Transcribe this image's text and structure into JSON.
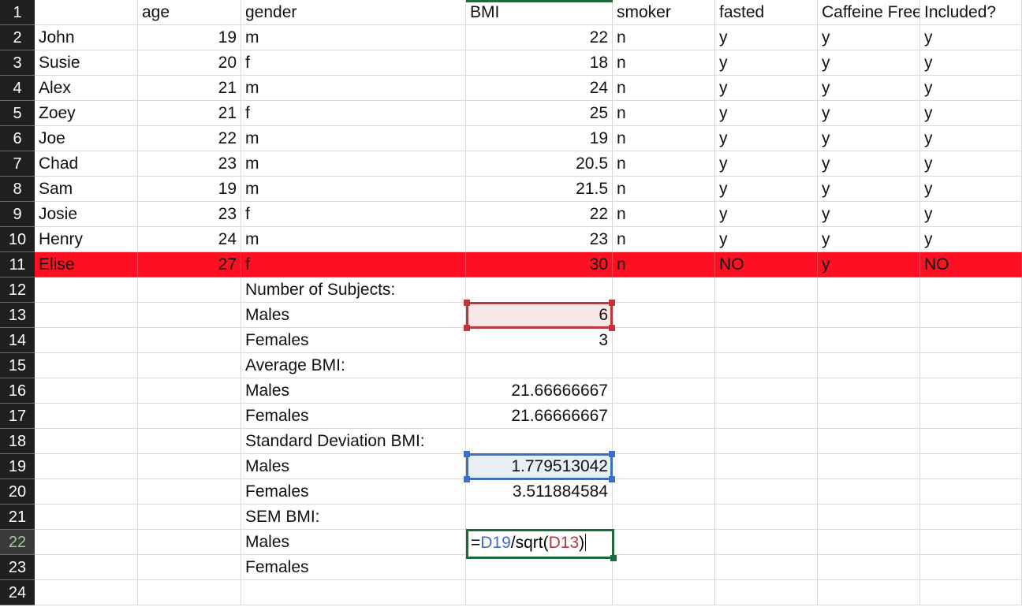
{
  "header_row": [
    "",
    "age",
    "gender",
    "BMI",
    "smoker",
    "fasted",
    "Caffeine Free",
    "Included?"
  ],
  "row_numbers": [
    "1",
    "2",
    "3",
    "4",
    "5",
    "6",
    "7",
    "8",
    "9",
    "10",
    "11",
    "12",
    "13",
    "14",
    "15",
    "16",
    "17",
    "18",
    "19",
    "20",
    "21",
    "22",
    "23",
    "24"
  ],
  "subjects": [
    {
      "name": "John",
      "age": "19",
      "gender": "m",
      "bmi": "22",
      "smoker": "n",
      "fasted": "y",
      "caffeine": "y",
      "included": "y"
    },
    {
      "name": "Susie",
      "age": "20",
      "gender": "f",
      "bmi": "18",
      "smoker": "n",
      "fasted": "y",
      "caffeine": "y",
      "included": "y"
    },
    {
      "name": "Alex",
      "age": "21",
      "gender": "m",
      "bmi": "24",
      "smoker": "n",
      "fasted": "y",
      "caffeine": "y",
      "included": "y"
    },
    {
      "name": "Zoey",
      "age": "21",
      "gender": "f",
      "bmi": "25",
      "smoker": "n",
      "fasted": "y",
      "caffeine": "y",
      "included": "y"
    },
    {
      "name": "Joe",
      "age": "22",
      "gender": "m",
      "bmi": "19",
      "smoker": "n",
      "fasted": "y",
      "caffeine": "y",
      "included": "y"
    },
    {
      "name": "Chad",
      "age": "23",
      "gender": "m",
      "bmi": "20.5",
      "smoker": "n",
      "fasted": "y",
      "caffeine": "y",
      "included": "y"
    },
    {
      "name": "Sam",
      "age": "19",
      "gender": "m",
      "bmi": "21.5",
      "smoker": "n",
      "fasted": "y",
      "caffeine": "y",
      "included": "y"
    },
    {
      "name": "Josie",
      "age": "23",
      "gender": "f",
      "bmi": "22",
      "smoker": "n",
      "fasted": "y",
      "caffeine": "y",
      "included": "y"
    },
    {
      "name": "Henry",
      "age": "24",
      "gender": "m",
      "bmi": "23",
      "smoker": "n",
      "fasted": "y",
      "caffeine": "y",
      "included": "y"
    },
    {
      "name": "Elise",
      "age": "27",
      "gender": "f",
      "bmi": "30",
      "smoker": "n",
      "fasted": "NO",
      "caffeine": "y",
      "included": "NO"
    }
  ],
  "summary": [
    {
      "label": "Number of Subjects:",
      "value": ""
    },
    {
      "label": "Males",
      "value": "6"
    },
    {
      "label": "Females",
      "value": "3"
    },
    {
      "label": "Average BMI:",
      "value": ""
    },
    {
      "label": "Males",
      "value": "21.66666667"
    },
    {
      "label": "Females",
      "value": "21.66666667"
    },
    {
      "label": "Standard Deviation BMI:",
      "value": ""
    },
    {
      "label": "Males",
      "value": "1.779513042"
    },
    {
      "label": "Females",
      "value": "3.511884584"
    },
    {
      "label": "SEM BMI:",
      "value": ""
    },
    {
      "label": "Males",
      "value": ""
    },
    {
      "label": "Females",
      "value": ""
    },
    {
      "label": "",
      "value": ""
    }
  ],
  "formula": {
    "prefix": "=",
    "ref1": "D19",
    "mid": "/sqrt(",
    "ref2": "D13",
    "suffix": ")"
  },
  "highlight_color": "#fc1021",
  "active_row": "22"
}
